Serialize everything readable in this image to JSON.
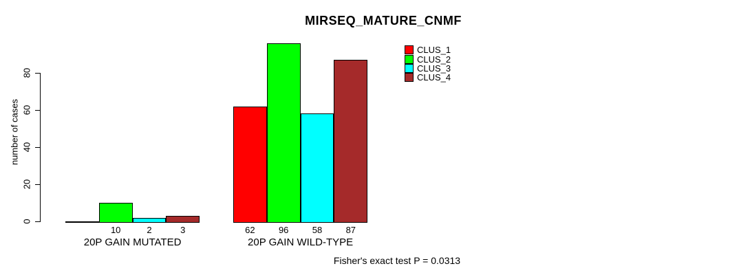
{
  "chart_data": {
    "type": "bar",
    "title": "MIRSEQ_MATURE_CNMF",
    "xlabel": "",
    "ylabel": "number of cases",
    "categories": [
      "20P GAIN MUTATED",
      "20P GAIN WILD-TYPE"
    ],
    "series": [
      {
        "name": "CLUS_1",
        "color": "#ff0000",
        "values": [
          0,
          62
        ]
      },
      {
        "name": "CLUS_2",
        "color": "#00ff00",
        "values": [
          10,
          96
        ]
      },
      {
        "name": "CLUS_3",
        "color": "#00ffff",
        "values": [
          2,
          58
        ]
      },
      {
        "name": "CLUS_4",
        "color": "#a52a2a",
        "values": [
          3,
          87
        ]
      }
    ],
    "value_labels_shown": true,
    "zero_value_labels_hidden": true,
    "ylim": [
      0,
      96
    ],
    "y_ticks": [
      0,
      20,
      40,
      60,
      80
    ],
    "grid": false,
    "legend": {
      "position": "upper-right-of-plot",
      "entries": [
        "CLUS_1",
        "CLUS_2",
        "CLUS_3",
        "CLUS_4"
      ]
    },
    "annotation": "Fisher's exact test P = 0.0313"
  }
}
